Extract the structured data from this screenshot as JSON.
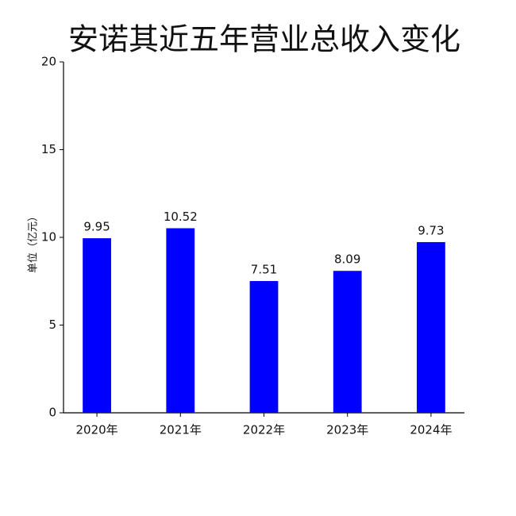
{
  "chart_data": {
    "type": "bar",
    "title": "安诺其近五年营业总收入变化",
    "y_label": "单位（亿元）",
    "categories": [
      "2020年",
      "2021年",
      "2022年",
      "2023年",
      "2024年"
    ],
    "values": [
      9.95,
      10.52,
      7.51,
      8.09,
      9.73
    ],
    "color": "#0000ff",
    "ylim": [
      0,
      20
    ],
    "yticks": [
      0,
      5,
      10,
      15,
      20
    ],
    "grid": false
  }
}
